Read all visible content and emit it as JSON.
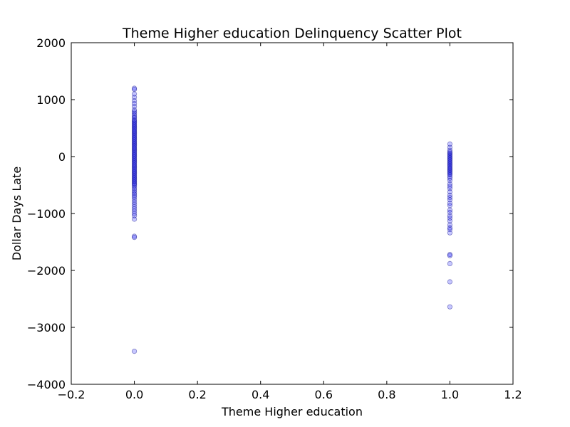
{
  "chart_data": {
    "type": "scatter",
    "title": "Theme Higher education Delinquency Scatter Plot",
    "xlabel": "Theme Higher education",
    "ylabel": "Dollar Days Late",
    "xlim": [
      -0.2,
      1.2
    ],
    "ylim": [
      -4000,
      2000
    ],
    "xticks": [
      -0.2,
      0.0,
      0.2,
      0.4,
      0.6,
      0.8,
      1.0,
      1.2
    ],
    "yticks": [
      -4000,
      -3000,
      -2000,
      -1000,
      0,
      1000,
      2000
    ],
    "xtick_labels": [
      "−0.2",
      "0.0",
      "0.2",
      "0.4",
      "0.6",
      "0.8",
      "1.0",
      "1.2"
    ],
    "ytick_labels": [
      "−4000",
      "−3000",
      "−2000",
      "−1000",
      "0",
      "1000",
      "2000"
    ],
    "grid": false,
    "marker_color": "#0000ff",
    "marker_alpha": 0.22,
    "marker_edge_color": "#000080",
    "points": [
      {
        "x": 0,
        "y": 1200
      },
      {
        "x": 0,
        "y": 1180
      },
      {
        "x": 0,
        "y": 1100
      },
      {
        "x": 0,
        "y": 1040
      },
      {
        "x": 0,
        "y": 980
      },
      {
        "x": 0,
        "y": 930
      },
      {
        "x": 0,
        "y": 880
      },
      {
        "x": 0,
        "y": 820
      },
      {
        "x": 0,
        "y": 790
      },
      {
        "x": 0,
        "y": 760
      },
      {
        "x": 0,
        "y": 730
      },
      {
        "x": 0,
        "y": 700
      },
      {
        "x": 0,
        "y": 680
      },
      {
        "x": 0,
        "y": 650
      },
      {
        "x": 0,
        "y": 630
      },
      {
        "x": 0,
        "y": 610
      },
      {
        "x": 0,
        "y": 590
      },
      {
        "x": 0,
        "y": 570
      },
      {
        "x": 0,
        "y": 550
      },
      {
        "x": 0,
        "y": 530
      },
      {
        "x": 0,
        "y": 510
      },
      {
        "x": 0,
        "y": 490
      },
      {
        "x": 0,
        "y": 470
      },
      {
        "x": 0,
        "y": 450
      },
      {
        "x": 0,
        "y": 430
      },
      {
        "x": 0,
        "y": 410
      },
      {
        "x": 0,
        "y": 390
      },
      {
        "x": 0,
        "y": 370
      },
      {
        "x": 0,
        "y": 350
      },
      {
        "x": 0,
        "y": 330
      },
      {
        "x": 0,
        "y": 310
      },
      {
        "x": 0,
        "y": 290
      },
      {
        "x": 0,
        "y": 270
      },
      {
        "x": 0,
        "y": 250
      },
      {
        "x": 0,
        "y": 230
      },
      {
        "x": 0,
        "y": 210
      },
      {
        "x": 0,
        "y": 190
      },
      {
        "x": 0,
        "y": 170
      },
      {
        "x": 0,
        "y": 150
      },
      {
        "x": 0,
        "y": 130
      },
      {
        "x": 0,
        "y": 110
      },
      {
        "x": 0,
        "y": 90
      },
      {
        "x": 0,
        "y": 70
      },
      {
        "x": 0,
        "y": 50
      },
      {
        "x": 0,
        "y": 30
      },
      {
        "x": 0,
        "y": 10
      },
      {
        "x": 0,
        "y": -10
      },
      {
        "x": 0,
        "y": -30
      },
      {
        "x": 0,
        "y": -50
      },
      {
        "x": 0,
        "y": -70
      },
      {
        "x": 0,
        "y": -90
      },
      {
        "x": 0,
        "y": -110
      },
      {
        "x": 0,
        "y": -130
      },
      {
        "x": 0,
        "y": -150
      },
      {
        "x": 0,
        "y": -170
      },
      {
        "x": 0,
        "y": -190
      },
      {
        "x": 0,
        "y": -210
      },
      {
        "x": 0,
        "y": -230
      },
      {
        "x": 0,
        "y": -250
      },
      {
        "x": 0,
        "y": -270
      },
      {
        "x": 0,
        "y": -290
      },
      {
        "x": 0,
        "y": -310
      },
      {
        "x": 0,
        "y": -330
      },
      {
        "x": 0,
        "y": -350
      },
      {
        "x": 0,
        "y": -370
      },
      {
        "x": 0,
        "y": -390
      },
      {
        "x": 0,
        "y": -410
      },
      {
        "x": 0,
        "y": -430
      },
      {
        "x": 0,
        "y": -450
      },
      {
        "x": 0,
        "y": -470
      },
      {
        "x": 0,
        "y": -490
      },
      {
        "x": 0,
        "y": -510
      },
      {
        "x": 0,
        "y": -540
      },
      {
        "x": 0,
        "y": -570
      },
      {
        "x": 0,
        "y": -600
      },
      {
        "x": 0,
        "y": -630
      },
      {
        "x": 0,
        "y": -660
      },
      {
        "x": 0,
        "y": -690
      },
      {
        "x": 0,
        "y": -720
      },
      {
        "x": 0,
        "y": -760
      },
      {
        "x": 0,
        "y": -800
      },
      {
        "x": 0,
        "y": -840
      },
      {
        "x": 0,
        "y": -880
      },
      {
        "x": 0,
        "y": -920
      },
      {
        "x": 0,
        "y": -960
      },
      {
        "x": 0,
        "y": -1000
      },
      {
        "x": 0,
        "y": -1040
      },
      {
        "x": 0,
        "y": -1100
      },
      {
        "x": 0,
        "y": -1400
      },
      {
        "x": 0,
        "y": -1420
      },
      {
        "x": 0,
        "y": -3420
      },
      {
        "x": 1,
        "y": 220
      },
      {
        "x": 1,
        "y": 160
      },
      {
        "x": 1,
        "y": 110
      },
      {
        "x": 1,
        "y": 80
      },
      {
        "x": 1,
        "y": 60
      },
      {
        "x": 1,
        "y": 40
      },
      {
        "x": 1,
        "y": 20
      },
      {
        "x": 1,
        "y": 0
      },
      {
        "x": 1,
        "y": -20
      },
      {
        "x": 1,
        "y": -40
      },
      {
        "x": 1,
        "y": -60
      },
      {
        "x": 1,
        "y": -80
      },
      {
        "x": 1,
        "y": -100
      },
      {
        "x": 1,
        "y": -120
      },
      {
        "x": 1,
        "y": -140
      },
      {
        "x": 1,
        "y": -160
      },
      {
        "x": 1,
        "y": -180
      },
      {
        "x": 1,
        "y": -200
      },
      {
        "x": 1,
        "y": -220
      },
      {
        "x": 1,
        "y": -240
      },
      {
        "x": 1,
        "y": -260
      },
      {
        "x": 1,
        "y": -280
      },
      {
        "x": 1,
        "y": -300
      },
      {
        "x": 1,
        "y": -320
      },
      {
        "x": 1,
        "y": -350
      },
      {
        "x": 1,
        "y": -380
      },
      {
        "x": 1,
        "y": -420
      },
      {
        "x": 1,
        "y": -480
      },
      {
        "x": 1,
        "y": -520
      },
      {
        "x": 1,
        "y": -560
      },
      {
        "x": 1,
        "y": -620
      },
      {
        "x": 1,
        "y": -680
      },
      {
        "x": 1,
        "y": -720
      },
      {
        "x": 1,
        "y": -760
      },
      {
        "x": 1,
        "y": -820
      },
      {
        "x": 1,
        "y": -860
      },
      {
        "x": 1,
        "y": -940
      },
      {
        "x": 1,
        "y": -980
      },
      {
        "x": 1,
        "y": -1040
      },
      {
        "x": 1,
        "y": -1080
      },
      {
        "x": 1,
        "y": -1130
      },
      {
        "x": 1,
        "y": -1200
      },
      {
        "x": 1,
        "y": -1250
      },
      {
        "x": 1,
        "y": -1280
      },
      {
        "x": 1,
        "y": -1340
      },
      {
        "x": 1,
        "y": -1720
      },
      {
        "x": 1,
        "y": -1740
      },
      {
        "x": 1,
        "y": -1880
      },
      {
        "x": 1,
        "y": -2200
      },
      {
        "x": 1,
        "y": -2640
      }
    ]
  }
}
